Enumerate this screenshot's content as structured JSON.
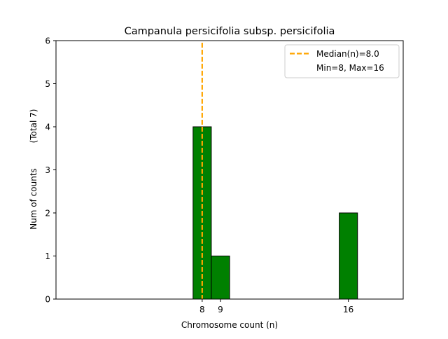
{
  "chart_data": {
    "type": "bar",
    "title": "Campanula persicifolia subsp. persicifolia",
    "xlabel": "Chromosome count (n)",
    "ylabel": "Num of counts",
    "ylabel_secondary": "(Total 7)",
    "xlim": [
      0,
      19
    ],
    "ylim": [
      0,
      6
    ],
    "xticks": [
      8,
      9,
      16
    ],
    "yticks": [
      0,
      1,
      2,
      3,
      4,
      5,
      6
    ],
    "bars": [
      {
        "x": 8,
        "value": 4
      },
      {
        "x": 9,
        "value": 1
      },
      {
        "x": 16,
        "value": 2
      }
    ],
    "bar_width": 1,
    "bar_color": "#008000",
    "bar_edge_color": "#000000",
    "median_line": {
      "x": 8,
      "color": "#FFA500",
      "style": "dashed"
    },
    "legend": {
      "placement": "top-right",
      "entries": [
        {
          "label": "Median(n)=8.0",
          "marker": "dashed-line",
          "color": "#FFA500"
        },
        {
          "label": "Min=8, Max=16",
          "marker": "none"
        }
      ]
    },
    "grid": false
  }
}
